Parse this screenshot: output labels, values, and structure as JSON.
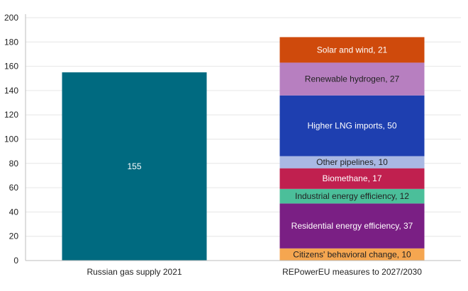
{
  "chart_data": {
    "type": "bar",
    "stacked": true,
    "title": "",
    "xlabel": "",
    "ylabel": "",
    "ylim": [
      0,
      200
    ],
    "yticks": [
      0,
      20,
      40,
      60,
      80,
      100,
      120,
      140,
      160,
      180,
      200
    ],
    "grid": true,
    "categories": [
      "Russian gas supply 2021",
      "REPowerEU measures to 2027/2030"
    ],
    "bars": [
      {
        "category": "Russian gas supply 2021",
        "segments": [
          {
            "label": "155",
            "value": 155,
            "color": "#006a80",
            "text_color": "#ffffff"
          }
        ]
      },
      {
        "category": "REPowerEU measures to 2027/2030",
        "segments": [
          {
            "label": "Citizens' behavioral change, 10",
            "value": 10,
            "color": "#f5a650",
            "text_color": "#222222"
          },
          {
            "label": "Residential energy efficiency, 37",
            "value": 37,
            "color": "#7a1f84",
            "text_color": "#ffffff"
          },
          {
            "label": "Industrial energy efficiency, 12",
            "value": 12,
            "color": "#4bbf9a",
            "text_color": "#222222"
          },
          {
            "label": "Biomethane, 17",
            "value": 17,
            "color": "#c0204f",
            "text_color": "#ffffff"
          },
          {
            "label": "Other pipelines, 10",
            "value": 10,
            "color": "#a9b8e3",
            "text_color": "#222222"
          },
          {
            "label": "Higher LNG imports, 50",
            "value": 50,
            "color": "#1e3fb0",
            "text_color": "#ffffff"
          },
          {
            "label": "Renewable hydrogen, 27",
            "value": 27,
            "color": "#b77fc0",
            "text_color": "#222222"
          },
          {
            "label": "Solar and wind, 21",
            "value": 21,
            "color": "#cf4a0c",
            "text_color": "#ffffff"
          }
        ]
      }
    ]
  }
}
